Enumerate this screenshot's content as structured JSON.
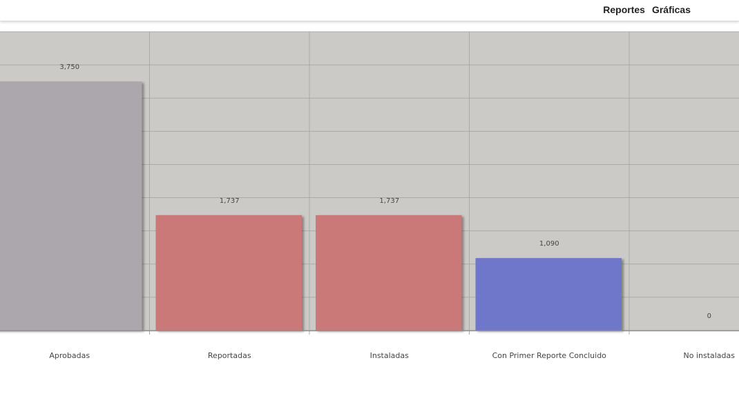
{
  "nav": {
    "items": [
      "Reportes",
      "Gráficas"
    ]
  },
  "colors": {
    "plot_background": "#cbcac6",
    "gridline": "#a9a9a5",
    "bar_gray": "#aca6ad",
    "bar_red": "#cb7878",
    "bar_blue": "#6e77c9",
    "label_text": "#444444"
  },
  "chart_data": {
    "type": "bar",
    "categories": [
      "Aprobadas",
      "Reportadas",
      "Instaladas",
      "Con Primer Reporte Concluido",
      "No instaladas"
    ],
    "values": [
      3750,
      1737,
      1737,
      1090,
      0
    ],
    "value_labels": [
      "3,750",
      "1,737",
      "1,737",
      "1,090",
      "0"
    ],
    "bar_colors": [
      "#aca6ad",
      "#cb7878",
      "#cb7878",
      "#6e77c9",
      "#6e77c9"
    ],
    "title": "",
    "xlabel": "",
    "ylabel": "",
    "ylim": [
      0,
      4500
    ],
    "ytick_step": 500,
    "grid": true,
    "legend": "none"
  }
}
